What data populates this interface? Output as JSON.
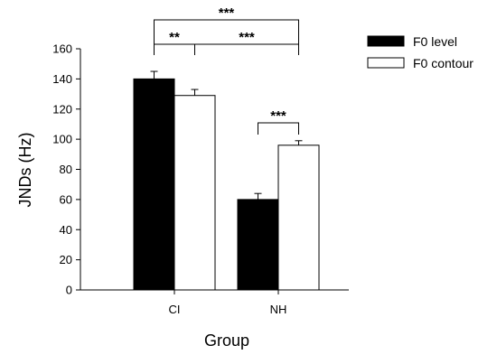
{
  "chart_data": {
    "type": "bar",
    "categories": [
      "CI",
      "NH"
    ],
    "series": [
      {
        "name": "F0 level",
        "values": [
          140,
          60
        ],
        "errors": [
          5,
          4
        ],
        "color": "#000000"
      },
      {
        "name": "F0 contour",
        "values": [
          129,
          96
        ],
        "errors": [
          4,
          3
        ],
        "color": "#ffffff"
      }
    ],
    "xlabel": "Group",
    "ylabel": "JNDs (Hz)",
    "ylim": [
      0,
      160
    ],
    "yticks": [
      0,
      20,
      40,
      60,
      80,
      100,
      120,
      140,
      160
    ],
    "grid": false,
    "legend_position": "top-right",
    "significance": [
      {
        "label": "***",
        "from": "CI F0 level",
        "to": "NH F0 contour"
      },
      {
        "label": "**",
        "from": "CI F0 level",
        "to": "CI F0 contour"
      },
      {
        "label": "***",
        "from": "CI F0 contour",
        "to": "NH F0 contour"
      },
      {
        "label": "***",
        "from": "NH F0 level",
        "to": "NH F0 contour"
      }
    ]
  }
}
